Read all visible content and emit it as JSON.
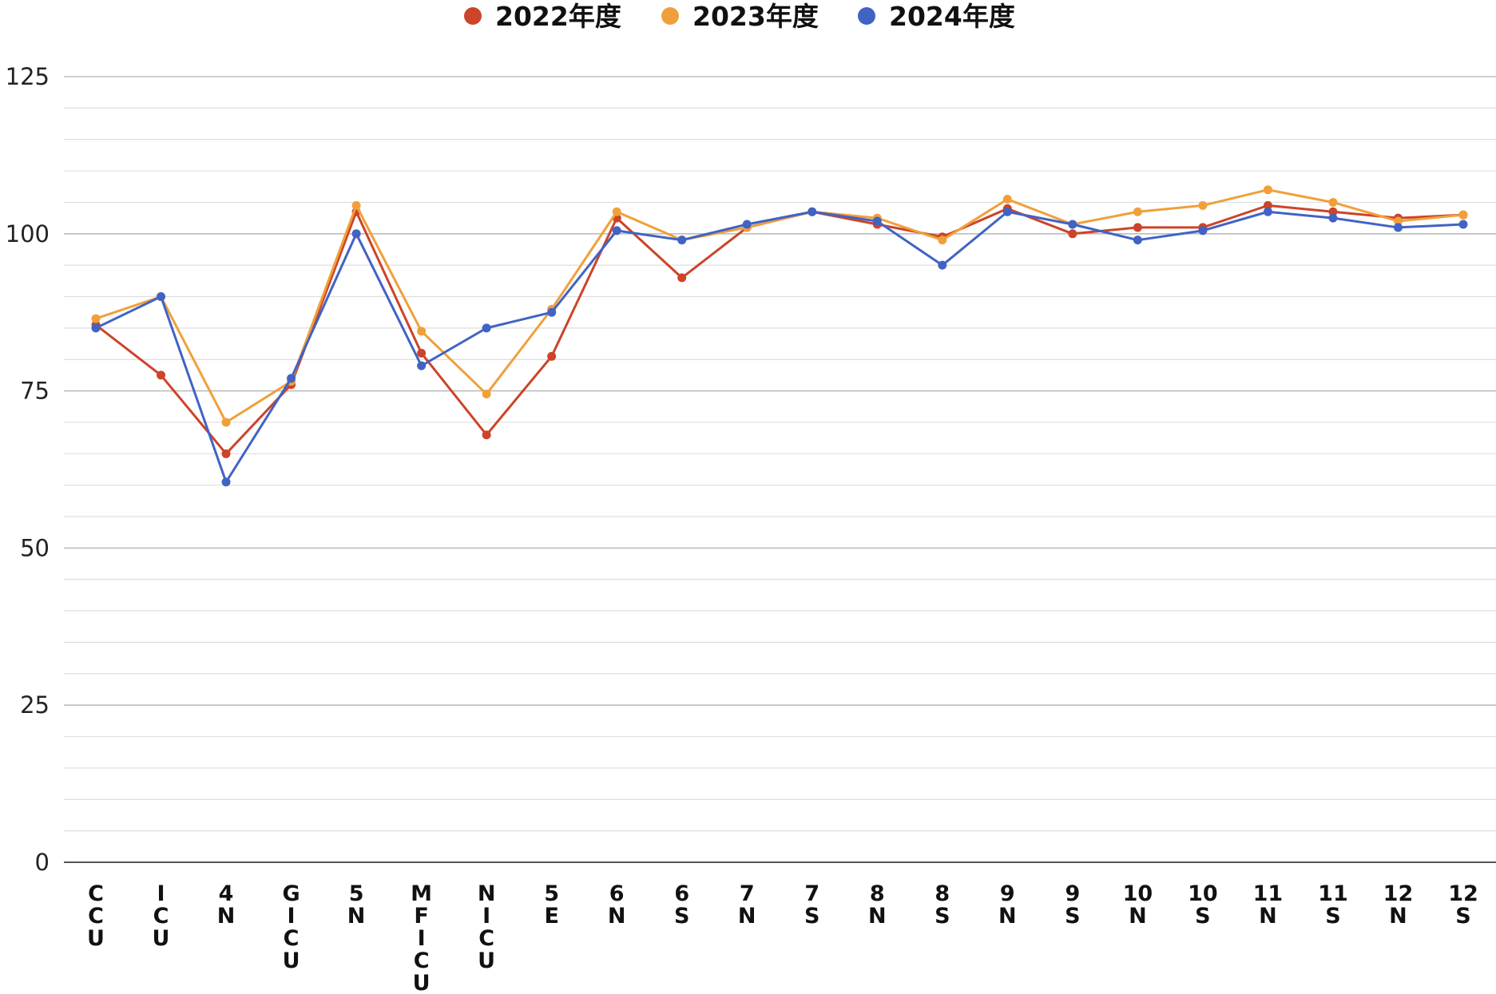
{
  "chart_data": {
    "type": "line",
    "title": "",
    "xlabel": "",
    "ylabel": "",
    "ylim": [
      0,
      125
    ],
    "yticks": [
      0,
      25,
      50,
      75,
      100,
      125
    ],
    "grid": "horizontal major and minor",
    "legend_position": "top-center",
    "categories": [
      "CCU",
      "ICU",
      "4N",
      "GICU",
      "5N",
      "MFICU",
      "NICU",
      "5E",
      "6N",
      "6S",
      "7N",
      "7S",
      "8N",
      "8S",
      "9N",
      "9S",
      "10N",
      "10S",
      "11N",
      "11S",
      "12N",
      "12S"
    ],
    "category_display": [
      [
        "C",
        "C",
        "U"
      ],
      [
        "I",
        "C",
        "U"
      ],
      [
        "4",
        "N"
      ],
      [
        "G",
        "I",
        "C",
        "U"
      ],
      [
        "5",
        "N"
      ],
      [
        "M",
        "F",
        "I",
        "C",
        "U"
      ],
      [
        "N",
        "I",
        "C",
        "U"
      ],
      [
        "5",
        "E"
      ],
      [
        "6",
        "N"
      ],
      [
        "6",
        "S"
      ],
      [
        "7",
        "N"
      ],
      [
        "7",
        "S"
      ],
      [
        "8",
        "N"
      ],
      [
        "8",
        "S"
      ],
      [
        "9",
        "N"
      ],
      [
        "9",
        "S"
      ],
      [
        "10",
        "N"
      ],
      [
        "10",
        "S"
      ],
      [
        "11",
        "N"
      ],
      [
        "11",
        "S"
      ],
      [
        "12",
        "N"
      ],
      [
        "12",
        "S"
      ]
    ],
    "series": [
      {
        "name": "2022年度",
        "color": "#cc4429",
        "values": [
          85.5,
          77.5,
          65,
          76,
          103.5,
          81,
          68,
          80.5,
          102.5,
          93,
          101,
          103.5,
          101.5,
          99.5,
          104,
          100,
          101,
          101,
          104.5,
          103.5,
          102.5,
          103
        ]
      },
      {
        "name": "2023年度",
        "color": "#f0a03a",
        "values": [
          86.5,
          90,
          70,
          76.5,
          104.5,
          84.5,
          74.5,
          88,
          103.5,
          99,
          101,
          103.5,
          102.5,
          99,
          105.5,
          101.5,
          103.5,
          104.5,
          107,
          105,
          102,
          103
        ]
      },
      {
        "name": "2024年度",
        "color": "#4063c4",
        "values": [
          85,
          90,
          60.5,
          77,
          100,
          79,
          85,
          87.5,
          100.5,
          99,
          101.5,
          103.5,
          102,
          95,
          103.5,
          101.5,
          99,
          100.5,
          103.5,
          102.5,
          101,
          101.5
        ]
      }
    ]
  }
}
